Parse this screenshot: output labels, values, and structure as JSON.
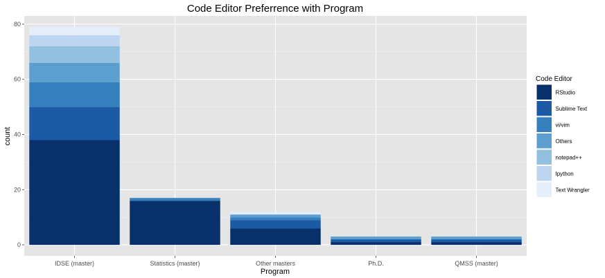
{
  "chart_data": {
    "type": "bar",
    "stacked": true,
    "title": "Code Editor Preferrence with Program",
    "xlabel": "Program",
    "ylabel": "count",
    "ylim": [
      -4,
      83
    ],
    "yticks": [
      0,
      20,
      40,
      60,
      80
    ],
    "grid": true,
    "legend_title": "Code Editor",
    "legend_position": "right",
    "categories": [
      "IDSE (master)",
      "Statistics (master)",
      "Other masters",
      "Ph.D.",
      "QMSS (master)"
    ],
    "series": [
      {
        "name": "RStudio",
        "color": "#08306b",
        "values": [
          38,
          16,
          6,
          1,
          1
        ]
      },
      {
        "name": "Sublime Text",
        "color": "#1c5aa6",
        "values": [
          12,
          0,
          3,
          1,
          1
        ]
      },
      {
        "name": "vi/vim",
        "color": "#3680bd",
        "values": [
          9,
          1,
          1,
          0,
          0
        ]
      },
      {
        "name": "Others",
        "color": "#5b9ecf",
        "values": [
          7,
          0,
          1,
          1,
          1
        ]
      },
      {
        "name": "notepad++",
        "color": "#92c0df",
        "values": [
          6,
          0,
          0,
          0,
          0
        ]
      },
      {
        "name": "Ipython",
        "color": "#bdd5ee",
        "values": [
          4,
          0,
          0,
          0,
          0
        ]
      },
      {
        "name": "Text Wrangler",
        "color": "#e5effb",
        "values": [
          3,
          0,
          1,
          0,
          0
        ]
      }
    ],
    "colors": {
      "panel_bg": "#e5e5e5",
      "grid_major": "#ffffff",
      "grid_minor": "#f2f2f2"
    }
  }
}
